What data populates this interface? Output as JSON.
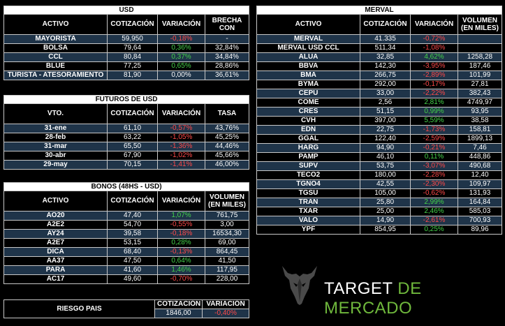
{
  "usd": {
    "title": "USD",
    "headers": [
      "ACTIVO",
      "COTIZACIÓN",
      "VARIACIÓN",
      "BRECHA CON"
    ],
    "rows": [
      {
        "activo": "MAYORISTA",
        "cotizacion": "59,950",
        "variacion": "-0,18%",
        "dir": "neg",
        "brecha": "-"
      },
      {
        "activo": "BOLSA",
        "cotizacion": "79,64",
        "variacion": "0,36%",
        "dir": "pos",
        "brecha": "32,84%"
      },
      {
        "activo": "CCL",
        "cotizacion": "80,84",
        "variacion": "0,37%",
        "dir": "pos",
        "brecha": "34,84%"
      },
      {
        "activo": "BLUE",
        "cotizacion": "77,25",
        "variacion": "0,65%",
        "dir": "pos",
        "brecha": "28,86%"
      },
      {
        "activo": "TURISTA - ATESORAMIENTO",
        "cotizacion": "81,90",
        "variacion": "0,00%",
        "dir": "neu",
        "brecha": "36,61%"
      }
    ]
  },
  "futuros": {
    "title": "FUTUROS DE USD",
    "headers": [
      "VTO.",
      "COTIZACIÓN",
      "VARIACIÓN",
      "TASA"
    ],
    "rows": [
      {
        "vto": "31-ene",
        "cotizacion": "61,10",
        "variacion": "-0,57%",
        "dir": "neg",
        "tasa": "43,76%"
      },
      {
        "vto": "28-feb",
        "cotizacion": "63,22",
        "variacion": "-1,05%",
        "dir": "neg",
        "tasa": "45,25%"
      },
      {
        "vto": "31-mar",
        "cotizacion": "65,50",
        "variacion": "-1,36%",
        "dir": "neg",
        "tasa": "44,46%"
      },
      {
        "vto": "30-abr",
        "cotizacion": "67,90",
        "variacion": "-1,02%",
        "dir": "neg",
        "tasa": "45,66%"
      },
      {
        "vto": "29-may",
        "cotizacion": "70,15",
        "variacion": "-1,41%",
        "dir": "neg",
        "tasa": "46,00%"
      }
    ]
  },
  "bonos": {
    "title": "BONOS (48HS - USD)",
    "headers": [
      "ACTIVO",
      "COTIZACIÓN",
      "VARIACIÓN",
      "VOLUMEN (EN MILES)"
    ],
    "rows": [
      {
        "activo": "AO20",
        "cotizacion": "47,40",
        "variacion": "1,07%",
        "dir": "pos",
        "volumen": "761,75"
      },
      {
        "activo": "A2E2",
        "cotizacion": "54,70",
        "variacion": "-0,55%",
        "dir": "neg",
        "volumen": "3,00"
      },
      {
        "activo": "AY24",
        "cotizacion": "39,58",
        "variacion": "-0,18%",
        "dir": "neg",
        "volumen": "16534,30"
      },
      {
        "activo": "A2E7",
        "cotizacion": "53,15",
        "variacion": "0,28%",
        "dir": "pos",
        "volumen": "69,00"
      },
      {
        "activo": "DICA",
        "cotizacion": "68,40",
        "variacion": "-0,13%",
        "dir": "neg",
        "volumen": "864,45"
      },
      {
        "activo": "AA37",
        "cotizacion": "47,50",
        "variacion": "0,64%",
        "dir": "pos",
        "volumen": "41,50"
      },
      {
        "activo": "PARA",
        "cotizacion": "41,60",
        "variacion": "1,46%",
        "dir": "pos",
        "volumen": "117,95"
      },
      {
        "activo": "AC17",
        "cotizacion": "49,60",
        "variacion": "-0,70%",
        "dir": "neg",
        "volumen": "228,00"
      }
    ]
  },
  "riesgo": {
    "label": "RIESGO PAIS",
    "headers": [
      "COTIZACIÓN",
      "VARIACIÓN"
    ],
    "cotizacion": "1846,00",
    "variacion": "-0,40%",
    "dir": "neg"
  },
  "merval": {
    "title": "MERVAL",
    "headers": [
      "ACTIVO",
      "COTIZACIÓN",
      "VARIACIÓN",
      "VOLUMEN (EN MILES)"
    ],
    "rows": [
      {
        "activo": "MERVAL",
        "cotizacion": "41.335",
        "variacion": "-0,72%",
        "dir": "neg",
        "volumen": ""
      },
      {
        "activo": "MERVAL USD CCL",
        "cotizacion": "511,34",
        "variacion": "-1,08%",
        "dir": "neg",
        "volumen": ""
      },
      {
        "activo": "ALUA",
        "cotizacion": "32,85",
        "variacion": "4,62%",
        "dir": "pos",
        "volumen": "1258,28"
      },
      {
        "activo": "BBVA",
        "cotizacion": "142,30",
        "variacion": "-3,95%",
        "dir": "neg",
        "volumen": "187,46"
      },
      {
        "activo": "BMA",
        "cotizacion": "266,75",
        "variacion": "-2,89%",
        "dir": "neg",
        "volumen": "101,99"
      },
      {
        "activo": "BYMA",
        "cotizacion": "292,00",
        "variacion": "-0,17%",
        "dir": "neg",
        "volumen": "27,81"
      },
      {
        "activo": "CEPU",
        "cotizacion": "33,00",
        "variacion": "-2,22%",
        "dir": "neg",
        "volumen": "382,43"
      },
      {
        "activo": "COME",
        "cotizacion": "2,56",
        "variacion": "2,81%",
        "dir": "pos",
        "volumen": "4749,97"
      },
      {
        "activo": "CRES",
        "cotizacion": "51,15",
        "variacion": "0,99%",
        "dir": "pos",
        "volumen": "93,95"
      },
      {
        "activo": "CVH",
        "cotizacion": "397,00",
        "variacion": "5,59%",
        "dir": "pos",
        "volumen": "38,58"
      },
      {
        "activo": "EDN",
        "cotizacion": "22,75",
        "variacion": "-1,73%",
        "dir": "neg",
        "volumen": "158,81"
      },
      {
        "activo": "GGAL",
        "cotizacion": "122,40",
        "variacion": "-2,59%",
        "dir": "neg",
        "volumen": "1899,13"
      },
      {
        "activo": "HARG",
        "cotizacion": "94,90",
        "variacion": "-0,21%",
        "dir": "neg",
        "volumen": "7,46"
      },
      {
        "activo": "PAMP",
        "cotizacion": "46,10",
        "variacion": "0,11%",
        "dir": "pos",
        "volumen": "448,86"
      },
      {
        "activo": "SUPV",
        "cotizacion": "53,75",
        "variacion": "-3,07%",
        "dir": "neg",
        "volumen": "490,68"
      },
      {
        "activo": "TECO2",
        "cotizacion": "180,00",
        "variacion": "-2,28%",
        "dir": "neg",
        "volumen": "12,40"
      },
      {
        "activo": "TGNO4",
        "cotizacion": "42,55",
        "variacion": "-2,30%",
        "dir": "neg",
        "volumen": "109,97"
      },
      {
        "activo": "TGSU",
        "cotizacion": "105,00",
        "variacion": "-0,62%",
        "dir": "neg",
        "volumen": "131,93"
      },
      {
        "activo": "TRAN",
        "cotizacion": "25,80",
        "variacion": "2,99%",
        "dir": "pos",
        "volumen": "164,84"
      },
      {
        "activo": "TXAR",
        "cotizacion": "25,00",
        "variacion": "2,46%",
        "dir": "pos",
        "volumen": "585,03"
      },
      {
        "activo": "VALO",
        "cotizacion": "14,90",
        "variacion": "-2,61%",
        "dir": "neg",
        "volumen": "700,93"
      },
      {
        "activo": "YPF",
        "cotizacion": "854,95",
        "variacion": "0,25%",
        "dir": "pos",
        "volumen": "89,96"
      }
    ]
  },
  "logo": {
    "word1": "TARGET",
    "word2": "DE MERCADO",
    "icon": "bull-head-icon"
  },
  "colors": {
    "row_alt": "#1f3449",
    "positive": "#44d34a",
    "negative": "#ff4a4a",
    "brand_green": "#6fb83c"
  }
}
